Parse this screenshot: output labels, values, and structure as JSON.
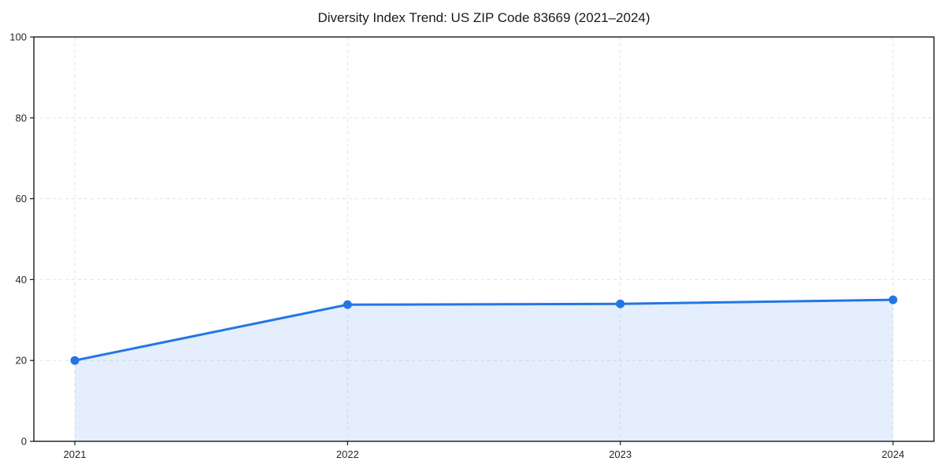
{
  "chart_data": {
    "type": "area",
    "title": "Diversity Index Trend: US ZIP Code 83669 (2021–2024)",
    "categories": [
      "2021",
      "2022",
      "2023",
      "2024"
    ],
    "values": [
      20,
      33.8,
      34,
      35
    ],
    "xlabel": "",
    "ylabel": "",
    "ylim": [
      0,
      100
    ],
    "yticks": [
      0,
      20,
      40,
      60,
      80,
      100
    ],
    "grid": true,
    "grid_style": "dashed",
    "legend": null,
    "marker": "circle",
    "colors": {
      "line": "#2376E5",
      "fill": "#2376E5",
      "fill_opacity": 0.12,
      "grid": "#E3E3E3",
      "axis": "#1A1A1A",
      "tick_label": "#262626",
      "background": "#FFFFFF"
    }
  }
}
